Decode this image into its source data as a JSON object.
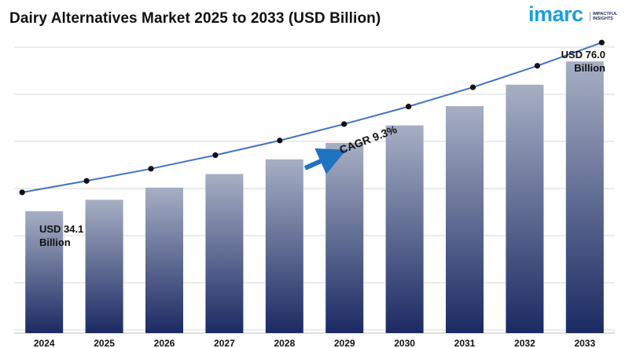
{
  "header": {
    "title": "Dairy Alternatives Market 2025 to 2033 (USD Billion)"
  },
  "logo": {
    "brand": "imarc",
    "tagline_line1": "IMPACTFUL",
    "tagline_line2": "INSIGHTS",
    "color": "#1a9fe0"
  },
  "chart_data": {
    "type": "bar",
    "title": "Dairy Alternatives Market 2025 to 2033 (USD Billion)",
    "categories": [
      "2024",
      "2025",
      "2026",
      "2027",
      "2028",
      "2029",
      "2030",
      "2031",
      "2032",
      "2033"
    ],
    "values": [
      34.1,
      37.3,
      40.7,
      44.5,
      48.6,
      53.2,
      58.1,
      63.5,
      69.5,
      76.0
    ],
    "ylim": [
      0,
      80
    ],
    "grid": true,
    "trend_line": true,
    "annotations": {
      "start_label": "USD 34.1 Billion",
      "end_label": "USD 76.0 Billion",
      "cagr_label": "CAGR 9.3%"
    },
    "colors": {
      "bar_top": "#a7afc4",
      "bar_bottom": "#1b2a63",
      "line": "#4472c4",
      "arrow": "#1f73c0"
    }
  }
}
